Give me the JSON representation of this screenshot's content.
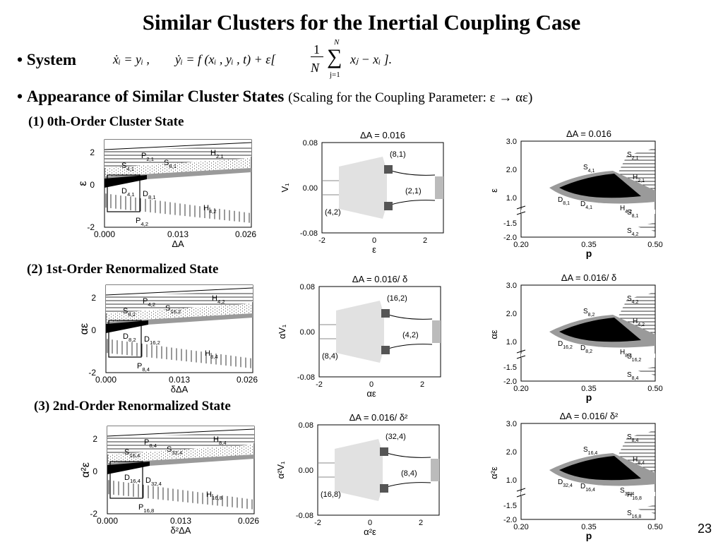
{
  "slide": {
    "title": "Similar Clusters for the Inertial Coupling Case",
    "system_label": "System",
    "bullet": "•",
    "appearance_label": "Appearance of Similar Cluster States",
    "appearance_note": "(Scaling for the Coupling Parameter: ε → αε)",
    "page_number": "23"
  },
  "equation": {
    "part1": "ẋᵢ = yᵢ ,",
    "part2": "ẏᵢ = f (xᵢ , yᵢ , t) + ε[",
    "frac_num": "1",
    "frac_den": "N",
    "sum_top": "N",
    "sum_bot": "j=1",
    "part3": "xⱼ − xᵢ ]."
  },
  "sections": [
    {
      "label": "(1) 0th-Order Cluster State",
      "phase": {
        "ylabel": "ε",
        "xlabel": "ΔA",
        "xticks": [
          "0.000",
          "0.013",
          "0.026"
        ],
        "yticks": [
          "2",
          "0",
          "-2"
        ],
        "regions": [
          {
            "text": "P",
            "sub": "2,1"
          },
          {
            "text": "S",
            "sub": "4,1"
          },
          {
            "text": "S",
            "sub": "8,1"
          },
          {
            "text": "H",
            "sub": "2,1"
          },
          {
            "text": "D",
            "sub": "4,1"
          },
          {
            "text": "D",
            "sub": "8,1"
          },
          {
            "text": "H",
            "sub": "4,2"
          },
          {
            "text": "P",
            "sub": "4,2"
          }
        ]
      },
      "bif": {
        "title": "ΔA = 0.016",
        "ylabel": "V₁",
        "xlabel": "ε",
        "yticks": [
          "0.08",
          "0.00",
          "-0.08"
        ],
        "xticks": [
          "-2",
          "0",
          "2"
        ],
        "labels": [
          "(8,1)",
          "(2,1)",
          "(4,2)"
        ]
      },
      "pd": {
        "title": "ΔA = 0.016",
        "ylabel": "ε",
        "xlabel": "p",
        "yticks": [
          "3.0",
          "2.0",
          "1.0",
          "-1.5",
          "-2.0"
        ],
        "xticks": [
          "0.20",
          "0.35",
          "0.50"
        ],
        "regions": [
          {
            "text": "S",
            "sub": "2,1"
          },
          {
            "text": "S",
            "sub": "4,1"
          },
          {
            "text": "D",
            "sub": "2,1"
          },
          {
            "text": "H",
            "sub": "2,1"
          },
          {
            "text": "D",
            "sub": "8,1"
          },
          {
            "text": "D",
            "sub": "4,1"
          },
          {
            "text": "H",
            "sub": "4,2"
          },
          {
            "text": "S",
            "sub": "8,1"
          },
          {
            "text": "S",
            "sub": "4,2"
          }
        ]
      }
    },
    {
      "label": "(2) 1st-Order Renormalized State",
      "phase": {
        "ylabel": "αε",
        "xlabel": "δΔA",
        "xticks": [
          "0.000",
          "0.013",
          "0.026"
        ],
        "yticks": [
          "2",
          "0",
          "-2"
        ],
        "regions": [
          {
            "text": "P",
            "sub": "4,2"
          },
          {
            "text": "S",
            "sub": "8,2"
          },
          {
            "text": "S",
            "sub": "16,2"
          },
          {
            "text": "H",
            "sub": "4,2"
          },
          {
            "text": "D",
            "sub": "8,2"
          },
          {
            "text": "D",
            "sub": "16,2"
          },
          {
            "text": "H",
            "sub": "8,4"
          },
          {
            "text": "P",
            "sub": "8,4"
          }
        ]
      },
      "bif": {
        "title": "ΔA = 0.016/ δ",
        "ylabel": "αV₁",
        "xlabel": "αε",
        "yticks": [
          "0.08",
          "0.00",
          "-0.08"
        ],
        "xticks": [
          "-2",
          "0",
          "2"
        ],
        "labels": [
          "(16,2)",
          "(4,2)",
          "(8,4)"
        ]
      },
      "pd": {
        "title": "ΔA = 0.016/ δ",
        "ylabel": "αε",
        "xlabel": "p",
        "yticks": [
          "3.0",
          "2.0",
          "1.0",
          "-1.5",
          "-2.0"
        ],
        "xticks": [
          "0.20",
          "0.35",
          "0.50"
        ],
        "regions": [
          {
            "text": "S",
            "sub": "4,2"
          },
          {
            "text": "S",
            "sub": "8,2"
          },
          {
            "text": "D",
            "sub": "4,2"
          },
          {
            "text": "H",
            "sub": "4,2"
          },
          {
            "text": "D",
            "sub": "16,2"
          },
          {
            "text": "D",
            "sub": "8,2"
          },
          {
            "text": "H",
            "sub": "8,4"
          },
          {
            "text": "S",
            "sub": "16,2"
          },
          {
            "text": "S",
            "sub": "8,4"
          }
        ]
      }
    },
    {
      "label": "(3) 2nd-Order Renormalized State",
      "phase": {
        "ylabel": "α²ε",
        "xlabel": "δ²ΔA",
        "xticks": [
          "0.000",
          "0.013",
          "0.026"
        ],
        "yticks": [
          "2",
          "0",
          "-2"
        ],
        "regions": [
          {
            "text": "P",
            "sub": "8,4"
          },
          {
            "text": "S",
            "sub": "16,4"
          },
          {
            "text": "S",
            "sub": "32,4"
          },
          {
            "text": "H",
            "sub": "8,4"
          },
          {
            "text": "D",
            "sub": "16,4"
          },
          {
            "text": "D",
            "sub": "32,4"
          },
          {
            "text": "H",
            "sub": "16,8"
          },
          {
            "text": "P",
            "sub": "16,8"
          }
        ]
      },
      "bif": {
        "title": "ΔA = 0.016/ δ²",
        "ylabel": "α²V₁",
        "xlabel": "α²ε",
        "yticks": [
          "0.08",
          "0.00",
          "-0.08"
        ],
        "xticks": [
          "-2",
          "0",
          "2"
        ],
        "labels": [
          "(32,4)",
          "(8,4)",
          "(16,8)"
        ]
      },
      "pd": {
        "title": "ΔA = 0.016/ δ²",
        "ylabel": "α²ε",
        "xlabel": "p",
        "yticks": [
          "3.0",
          "2.0",
          "1.0",
          "-1.5",
          "-2.0"
        ],
        "xticks": [
          "0.20",
          "0.35",
          "0.50"
        ],
        "regions": [
          {
            "text": "S",
            "sub": "8,4"
          },
          {
            "text": "S",
            "sub": "16,4"
          },
          {
            "text": "D",
            "sub": "8,4"
          },
          {
            "text": "H",
            "sub": "8,4"
          },
          {
            "text": "D",
            "sub": "32,4"
          },
          {
            "text": "D",
            "sub": "16,4"
          },
          {
            "text": "S",
            "sub": "32,4"
          },
          {
            "text": "H",
            "sub": "16,8"
          },
          {
            "text": "S",
            "sub": "16,8"
          }
        ]
      }
    }
  ]
}
